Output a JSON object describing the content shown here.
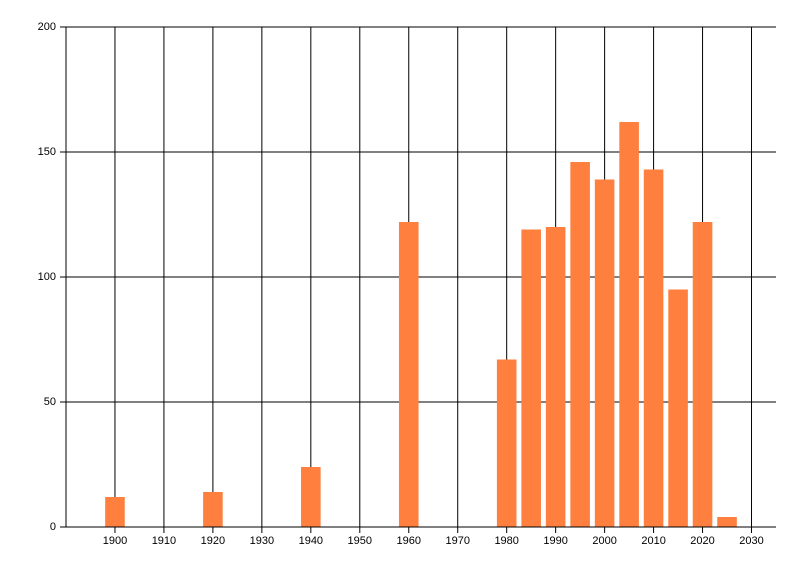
{
  "chart_data": {
    "type": "bar",
    "x": [
      1900,
      1920,
      1940,
      1960,
      1980,
      1985,
      1990,
      1995,
      2000,
      2005,
      2010,
      2015,
      2020,
      2025
    ],
    "values": [
      12,
      14,
      24,
      122,
      67,
      119,
      120,
      146,
      139,
      162,
      143,
      95,
      122,
      4
    ],
    "color": "#ff7f3f",
    "xlim": [
      1890,
      2035
    ],
    "xticks": [
      1900,
      1910,
      1920,
      1930,
      1940,
      1950,
      1960,
      1970,
      1980,
      1990,
      2000,
      2010,
      2020,
      2030
    ],
    "ylim": [
      0,
      200
    ],
    "yticks": [
      0,
      50,
      100,
      150,
      200
    ],
    "grid": true
  }
}
